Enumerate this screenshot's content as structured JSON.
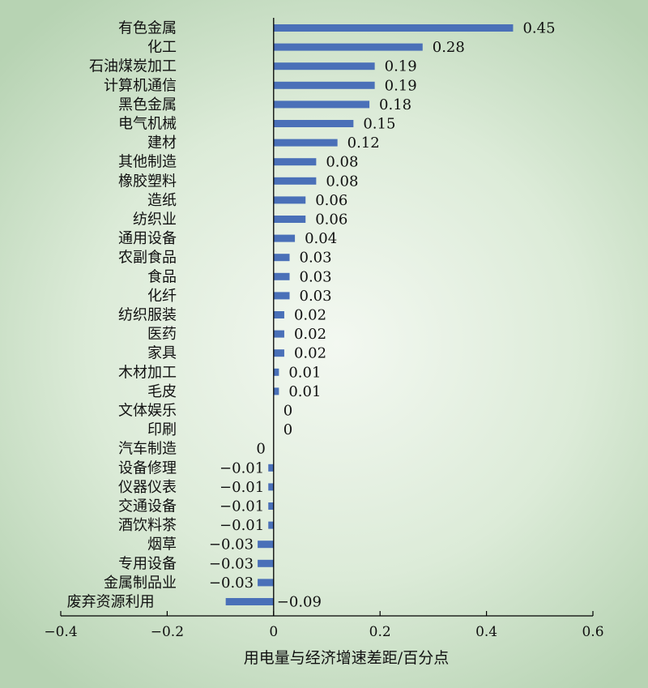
{
  "chart_data": {
    "type": "bar",
    "orientation": "horizontal",
    "categories": [
      "有色金属",
      "化工",
      "石油煤炭加工",
      "计算机通信",
      "黑色金属",
      "电气机械",
      "建材",
      "其他制造",
      "橡胶塑料",
      "造纸",
      "纺织业",
      "通用设备",
      "农副食品",
      "食品",
      "化纤",
      "纺织服装",
      "医药",
      "家具",
      "木材加工",
      "毛皮",
      "文体娱乐",
      "印刷",
      "汽车制造",
      "设备修理",
      "仪器仪表",
      "交通设备",
      "酒饮料茶",
      "烟草",
      "专用设备",
      "金属制品业",
      "废弃资源利用"
    ],
    "values": [
      0.45,
      0.28,
      0.19,
      0.19,
      0.18,
      0.15,
      0.12,
      0.08,
      0.08,
      0.06,
      0.06,
      0.04,
      0.03,
      0.03,
      0.03,
      0.02,
      0.02,
      0.02,
      0.01,
      0.01,
      0,
      0,
      0,
      -0.01,
      -0.01,
      -0.01,
      -0.01,
      -0.03,
      -0.03,
      -0.03,
      -0.09
    ],
    "value_labels": [
      "0.45",
      "0.28",
      "0.19",
      "0.19",
      "0.18",
      "0.15",
      "0.12",
      "0.08",
      "0.08",
      "0.06",
      "0.06",
      "0.04",
      "0.03",
      "0.03",
      "0.03",
      "0.02",
      "0.02",
      "0.02",
      "0.01",
      "0.01",
      "0",
      "0",
      "0",
      "−0.01",
      "−0.01",
      "−0.01",
      "−0.01",
      "−0.03",
      "−0.03",
      "−0.03",
      "−0.09"
    ],
    "xlabel": "用电量与经济增速差距/百分点",
    "xlim": [
      -0.4,
      0.6
    ],
    "xticks": [
      -0.4,
      -0.2,
      0,
      0.2,
      0.4,
      0.6
    ],
    "xtick_labels": [
      "−0.4",
      "−0.2",
      "0",
      "0.2",
      "0.4",
      "0.6"
    ],
    "grid": false,
    "colors": {
      "bar": "#4a70b8",
      "axis": "#000000",
      "text": "#111111"
    }
  }
}
